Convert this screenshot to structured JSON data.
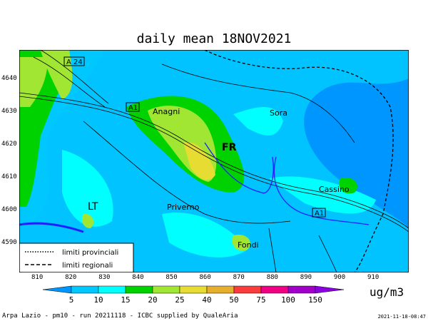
{
  "title": "daily mean 18NOV2021",
  "x_ticks": [
    "810",
    "820",
    "830",
    "840",
    "850",
    "860",
    "870",
    "880",
    "890",
    "900",
    "910"
  ],
  "y_ticks": [
    "4640",
    "4630",
    "4620",
    "4610",
    "4600",
    "4590"
  ],
  "places": {
    "a24": "A 24",
    "a1_north": "A1",
    "anagni": "Anagni",
    "sora": "Sora",
    "fr": "FR",
    "cassino": "Cassino",
    "lt": "LT",
    "priverno": "Priverno",
    "a1_south": "A1",
    "fondi": "Fondi"
  },
  "legend": {
    "provincial": "limiti provinciali",
    "regional": "limiti regionali"
  },
  "colorbar": {
    "labels": [
      "5",
      "10",
      "15",
      "20",
      "25",
      "40",
      "50",
      "75",
      "100",
      "150"
    ],
    "colors": [
      "#00c8ff",
      "#00ffff",
      "#00d200",
      "#a0e632",
      "#e6dc32",
      "#e6af2d",
      "#fa3c3c",
      "#f00082",
      "#a000c8"
    ],
    "under_color": "#0096ff",
    "over_color": "#8c00e6",
    "unit": "ug/m3"
  },
  "footer": "Arpa Lazio - pm10 - run 20211118 - ICBC supplied by QualeAria",
  "timestamp": "2021-11-18-08:47"
}
